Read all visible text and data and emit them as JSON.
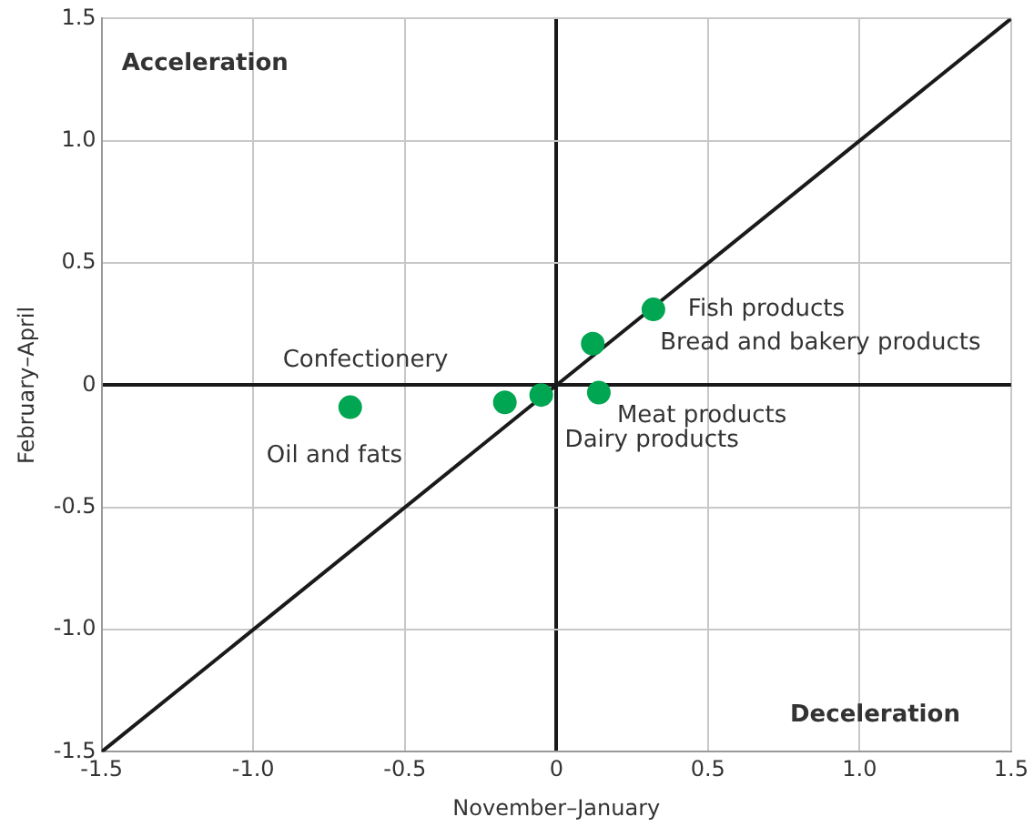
{
  "chart_data": {
    "type": "scatter",
    "xlabel": "November–January",
    "ylabel": "February–April",
    "series": [
      {
        "color": "#00a651",
        "marker": "circle",
        "x": [
          -0.68,
          -0.17,
          -0.05,
          0.14,
          0.12,
          0.32
        ],
        "values": [
          -0.09,
          -0.07,
          -0.04,
          -0.03,
          0.17,
          0.31
        ]
      },
      {
        "type": "line",
        "color": "#1a1a1a",
        "x": [
          -1.5,
          1.5
        ],
        "values": [
          -1.5,
          1.5
        ]
      }
    ],
    "xlim": [
      -1.5,
      1.5
    ],
    "ylim": [
      -1.5,
      1.5
    ],
    "xticks": [
      -1.5,
      {
        "value": -1,
        "label": "-1.0"
      },
      -0.5,
      0,
      0.5,
      {
        "value": 1,
        "label": "1.0"
      },
      1.5
    ],
    "yticks": [
      -1.5,
      {
        "value": -1,
        "label": "-1.0"
      },
      -0.5,
      0,
      0.5,
      {
        "value": 1,
        "label": "1.0"
      },
      1.5
    ],
    "grid": true,
    "legend": false,
    "annotations": [
      "Acceleration",
      "Deceleration",
      {
        "text": "Fish products",
        "x": 0.32,
        "y": 0.31
      },
      {
        "text": "Bread and bakery products",
        "x": 0.12,
        "y": 0.17
      },
      {
        "text": "Meat products",
        "x": 0.14,
        "y": -0.03
      },
      {
        "text": "Dairy products",
        "x": -0.05,
        "y": -0.04
      },
      {
        "text": "Confectionery",
        "x": -0.17,
        "y": -0.07
      },
      {
        "text": "Oil and fats",
        "x": -0.68,
        "y": -0.09
      }
    ]
  }
}
